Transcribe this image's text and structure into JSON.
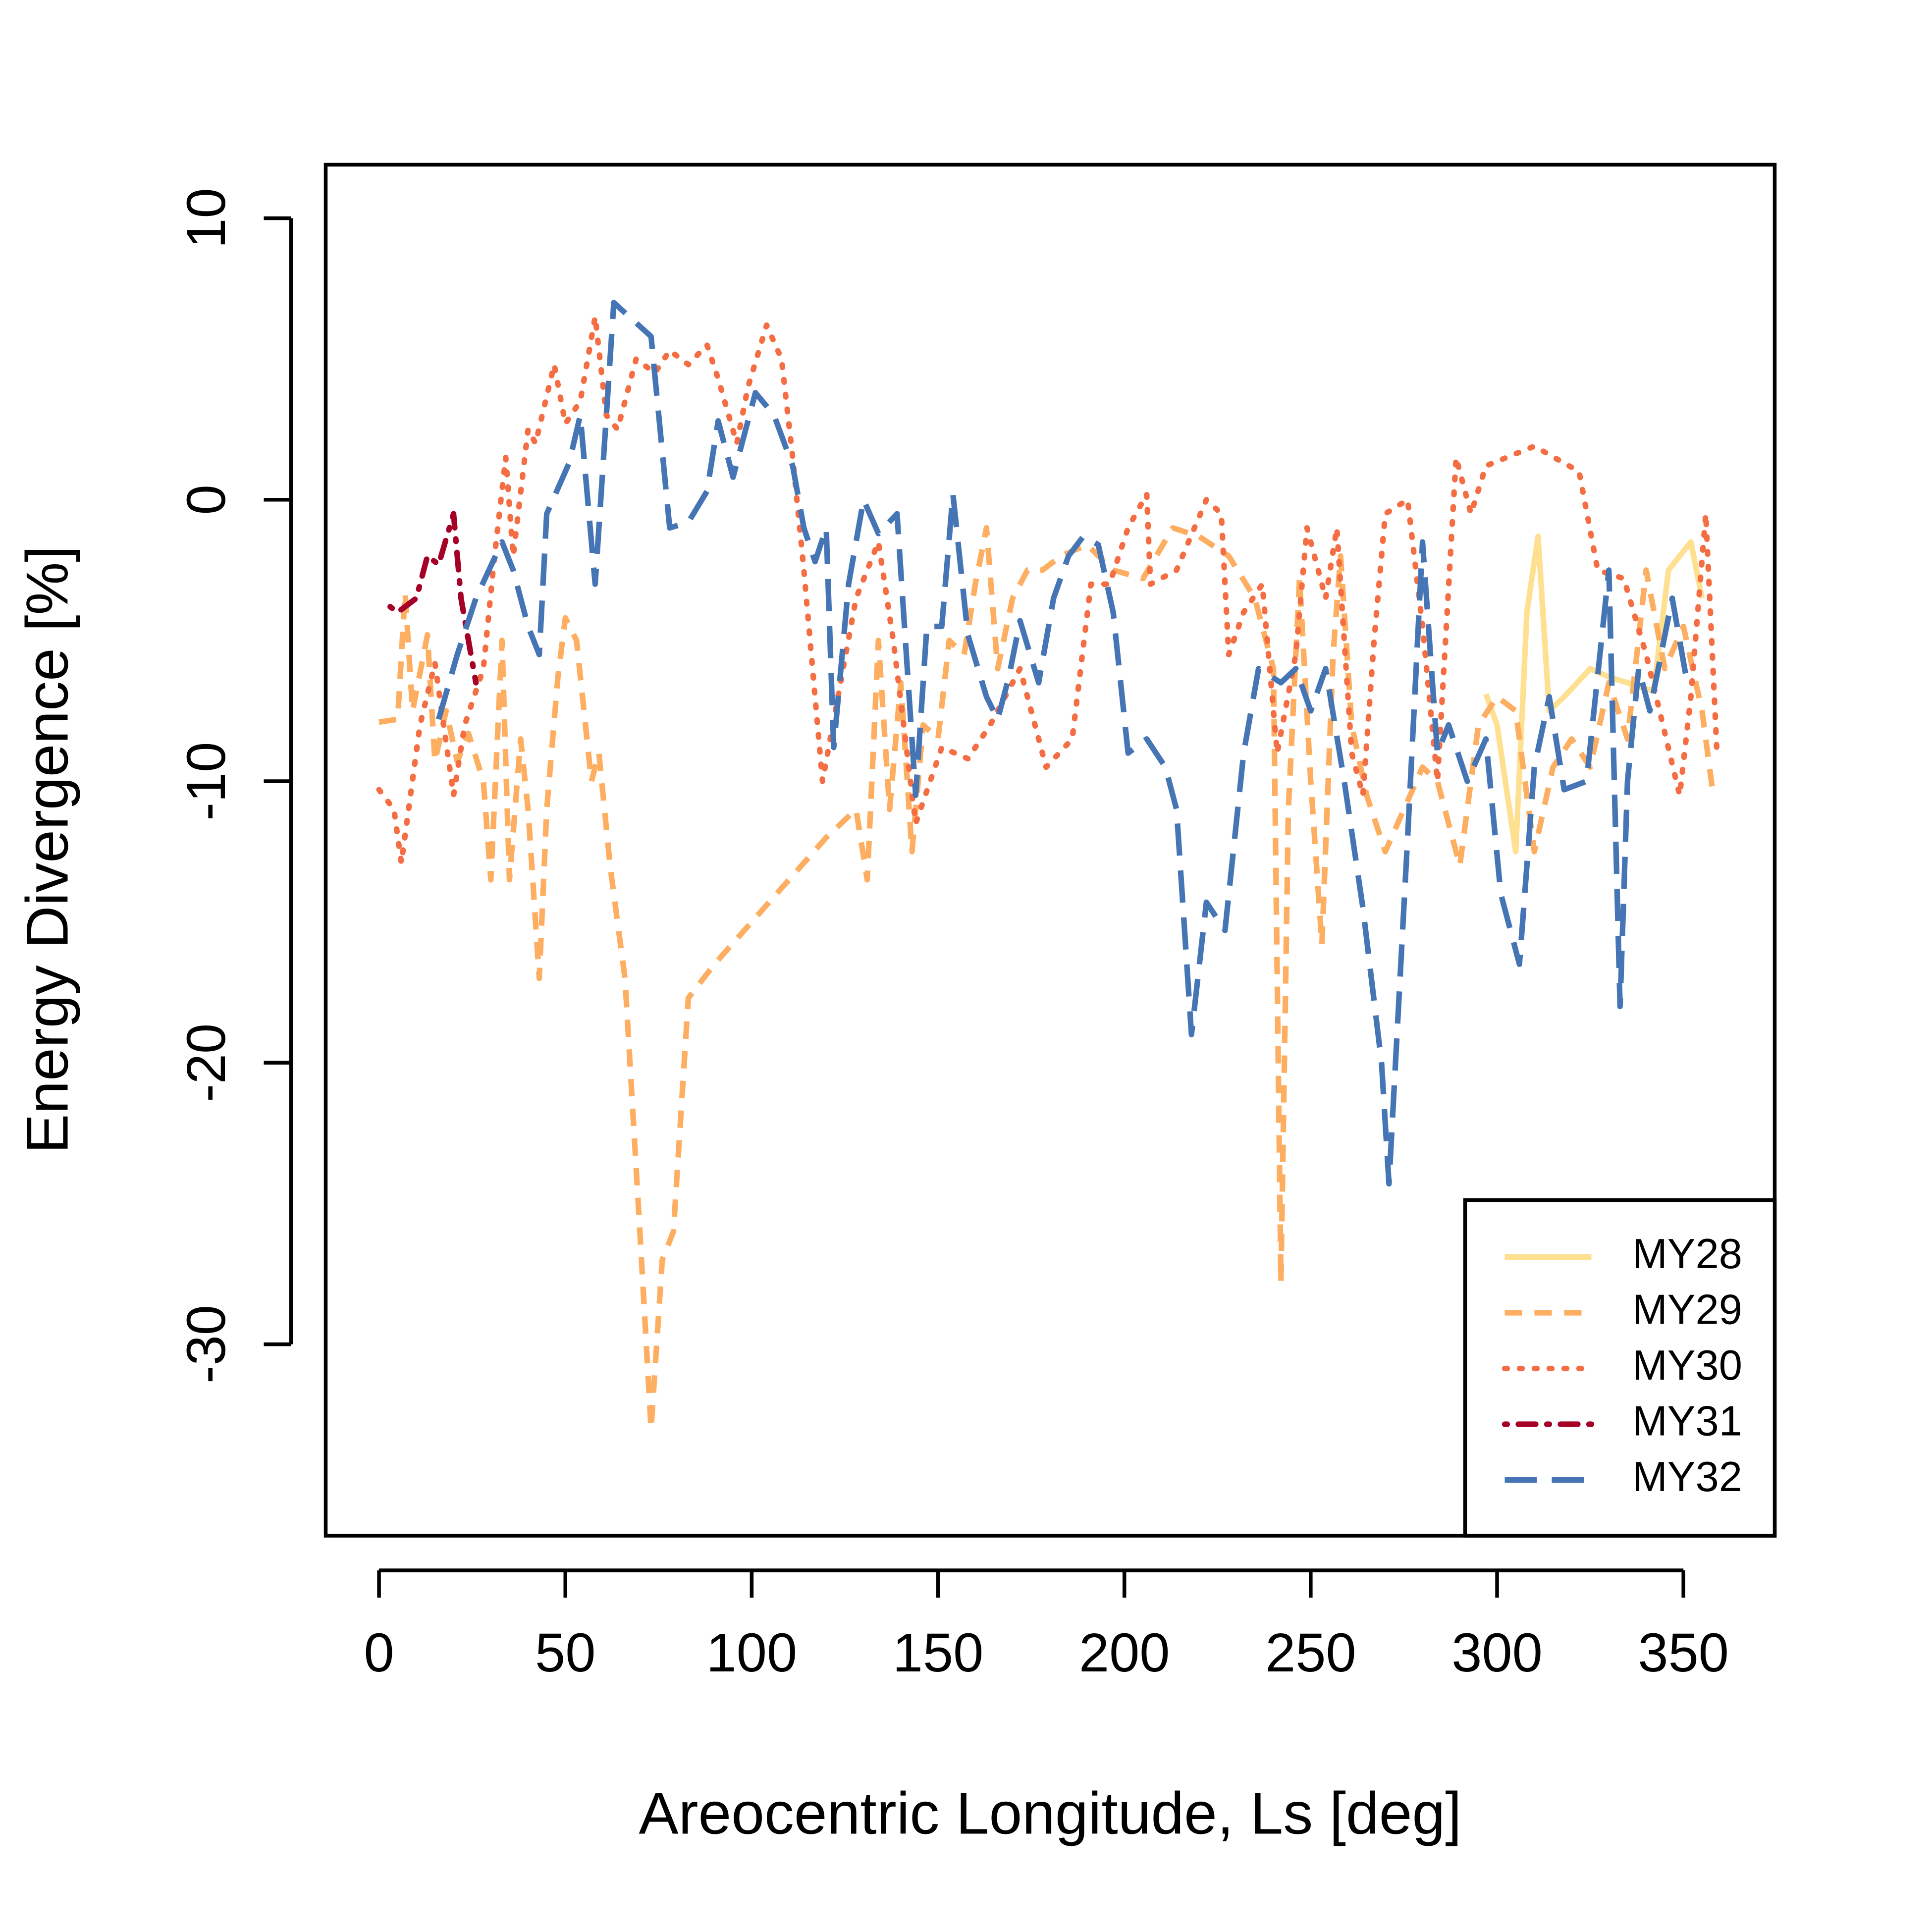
{
  "chart_data": {
    "type": "line",
    "xlabel": "Areocentric Longitude, Ls [deg]",
    "ylabel": "Energy Divergence [%]",
    "xlim": [
      -14.3,
      374.5
    ],
    "ylim": [
      -36.8,
      11.9
    ],
    "xticks": [
      0,
      50,
      100,
      150,
      200,
      250,
      300,
      350
    ],
    "yticks": [
      -30,
      -20,
      -10,
      0,
      10
    ],
    "legend": "bottom right",
    "series": [
      {
        "name": "MY28",
        "color": "#fee090",
        "linestyle": "solid",
        "x": [
          297,
          300,
          305,
          308,
          311,
          314,
          318,
          325,
          330,
          335,
          342,
          346,
          352,
          355
        ],
        "values": [
          -6.9,
          -8,
          -12.5,
          -4,
          -1.3,
          -7.5,
          -7,
          -6,
          -6.3,
          -6.5,
          -6.8,
          -2.5,
          -1.5,
          -3.5
        ]
      },
      {
        "name": "MY29",
        "color": "#fdae61",
        "linestyle": "dashed",
        "x": [
          0,
          5,
          7,
          9,
          13,
          15,
          18,
          21,
          24,
          28,
          30,
          33,
          35,
          38,
          40,
          43,
          45,
          48,
          50,
          53,
          57,
          59,
          62,
          66,
          70,
          73,
          76,
          79,
          83,
          90,
          100,
          110,
          120,
          128,
          131,
          134,
          137,
          140,
          143,
          146,
          150,
          153,
          157,
          160,
          163,
          166,
          170,
          174,
          178,
          183,
          190,
          197,
          205,
          213,
          220,
          228,
          235,
          240,
          242,
          244,
          247,
          250,
          253,
          256,
          258,
          261,
          265,
          270,
          275,
          280,
          284,
          290,
          295,
          300,
          305,
          310,
          315,
          320,
          325,
          330,
          335,
          340,
          345,
          350,
          355,
          358
        ],
        "values": [
          -7.9,
          -7.8,
          -3.3,
          -7.5,
          -4.8,
          -9.3,
          -7.5,
          -9.3,
          -8.3,
          -10,
          -13.5,
          -5,
          -13.5,
          -8.5,
          -11,
          -17,
          -11,
          -6.3,
          -4.2,
          -5,
          -10,
          -9,
          -13,
          -17,
          -26,
          -33,
          -27,
          -26,
          -17.7,
          -16.5,
          -15,
          -13.5,
          -12,
          -11,
          -13.5,
          -5,
          -11,
          -6.5,
          -12.5,
          -8,
          -8.5,
          -5,
          -5.5,
          -3,
          -1,
          -6,
          -3.5,
          -2.5,
          -2.5,
          -2,
          -1.6,
          -2.5,
          -2.8,
          -1,
          -1.3,
          -2,
          -3.5,
          -6,
          -27.8,
          -11,
          -2.8,
          -10,
          -15.8,
          -5.5,
          -2,
          -8,
          -10.5,
          -12.5,
          -11,
          -9.5,
          -10,
          -13,
          -8,
          -7,
          -7.5,
          -12.5,
          -9.5,
          -8.5,
          -9.5,
          -6.5,
          -8.5,
          -2.5,
          -6,
          -4.5,
          -7.5,
          -10.5
        ]
      },
      {
        "name": "MY30",
        "color": "#f46d43",
        "linestyle": "dotted",
        "x": [
          0,
          4,
          6,
          11,
          15,
          20,
          23,
          28,
          31,
          34,
          36,
          40,
          42,
          47,
          50,
          54,
          58,
          61,
          64,
          69,
          74,
          78,
          83,
          88,
          91,
          96,
          99,
          104,
          108,
          111,
          114,
          119,
          128,
          134,
          138,
          144,
          151,
          158,
          164,
          172,
          179,
          186,
          191,
          196,
          201,
          206,
          207,
          214,
          222,
          226,
          228,
          232,
          237,
          241,
          246,
          249,
          254,
          257,
          261,
          264,
          267,
          270,
          276,
          280,
          284,
          289,
          293,
          297,
          310,
          322,
          327,
          334,
          340,
          349,
          352,
          356,
          359
        ],
        "values": [
          -10.3,
          -11,
          -12.9,
          -8,
          -5.8,
          -10.5,
          -8,
          -6,
          -2,
          1.5,
          -2,
          2.5,
          2,
          4.8,
          2.7,
          3.5,
          6.5,
          3,
          2.5,
          5,
          4.5,
          5.3,
          4.8,
          5.5,
          4.3,
          2,
          4,
          6.2,
          5,
          1.5,
          -2.5,
          -10,
          -3.5,
          -1.5,
          -5,
          -11.5,
          -8.8,
          -9.2,
          -8,
          -6,
          -9.5,
          -8.5,
          -3,
          -3,
          -1,
          0.2,
          -3,
          -2.5,
          0,
          -0.5,
          -5.5,
          -4,
          -3,
          -9,
          -5.5,
          -1,
          -3.5,
          -1,
          -9,
          -10.5,
          -5,
          -0.5,
          0,
          -4.5,
          -10,
          1.5,
          -0.5,
          1.2,
          1.9,
          1,
          -2.5,
          -2.8,
          -5.5,
          -10.5,
          -7,
          -0.5,
          -9
        ]
      },
      {
        "name": "MY31",
        "color": "#a50026",
        "linestyle": "dotdash",
        "x": [
          3,
          5,
          10,
          13,
          16,
          20,
          22,
          26
        ],
        "values": [
          -3.8,
          -4,
          -3.5,
          -2,
          -2.3,
          -0.5,
          -3.5,
          -6.5
        ]
      },
      {
        "name": "MY32",
        "color": "#4575b4",
        "linestyle": "longdash",
        "x": [
          16,
          21,
          26,
          33,
          36,
          40,
          43,
          45,
          51,
          54,
          58,
          63,
          73,
          78,
          83,
          88,
          91,
          95,
          101,
          106,
          111,
          114,
          117,
          120,
          122,
          126,
          130,
          134,
          139,
          144,
          147,
          151,
          154,
          158,
          163,
          166,
          169,
          172,
          177,
          181,
          185,
          189,
          193,
          197,
          201,
          206,
          211,
          214,
          218,
          222,
          227,
          232,
          236,
          242,
          246,
          250,
          254,
          259,
          264,
          269,
          271,
          276,
          280,
          284,
          287,
          292,
          297,
          301,
          306,
          310,
          314,
          318,
          324,
          328,
          330,
          333,
          335,
          338,
          341,
          347,
          351
        ],
        "values": [
          -7.8,
          -5.5,
          -3.5,
          -1.5,
          -2.5,
          -4.5,
          -5.5,
          -0.5,
          1.3,
          3,
          -3,
          7,
          5.8,
          -1,
          -0.8,
          0.3,
          2.8,
          0.8,
          3.8,
          3,
          1.2,
          -1,
          -2.2,
          -1,
          -8.8,
          -3,
          0,
          -1.2,
          -0.5,
          -10.5,
          -4.5,
          -4.5,
          0.2,
          -4.8,
          -7,
          -7.8,
          -6.3,
          -4.3,
          -6.5,
          -3.5,
          -2,
          -1.3,
          -1.6,
          -4,
          -9,
          -8.5,
          -9.5,
          -11,
          -19,
          -14.3,
          -15.3,
          -9,
          -6,
          -6.5,
          -6,
          -7.5,
          -6,
          -10,
          -14.5,
          -20,
          -24.3,
          -12,
          -1.5,
          -9,
          -8,
          -10,
          -8.5,
          -14,
          -16.5,
          -9.5,
          -7,
          -10.3,
          -10,
          -5,
          -2.5,
          -18,
          -10,
          -6,
          -7.5,
          -3.5,
          -6.5
        ]
      }
    ]
  }
}
